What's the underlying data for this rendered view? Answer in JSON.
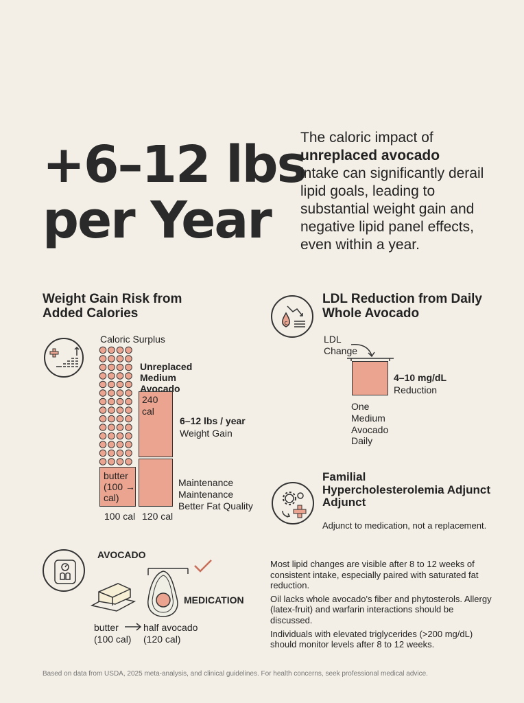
{
  "headline": {
    "line1": "+6–12 lbs",
    "line2": "per Year"
  },
  "intro": {
    "part1": "The caloric impact of",
    "bold": "unreplaced avocado",
    "part2": "intake can significantly derail lipid goals, leading to substantial weight gain and negative lipid panel effects, even within a year."
  },
  "weight_section": {
    "title_line1": "Weight Gain Risk from",
    "title_line2": "Added Calories",
    "caloric_surplus": "Caloric Surplus",
    "dots_label_line1": "Unreplaced",
    "dots_label_line2": "Medium",
    "dots_label_line3": "Avocado",
    "bar_240_label": "240 cal",
    "gain_label_line1": "6–12 lbs / year",
    "gain_label_line2": "Weight Gain",
    "butter_label_line1": "butter",
    "butter_label_line2": "(100 →",
    "butter_label_line3": "cal)",
    "maint_line1": "Maintenance",
    "maint_line2": "Maintenance",
    "maint_line3": "Better Fat Quality",
    "cal_100": "100 cal",
    "cal_120": "120 cal"
  },
  "ldl_section": {
    "title_line1": "LDL Reduction from Daily",
    "title_line2": "Whole Avocado",
    "ldl_change_line1": "LDL",
    "ldl_change_line2": "Change",
    "reduction_line1": "4–10 mg/dL",
    "reduction_line2": "Reduction",
    "avocado_line1": "One",
    "avocado_line2": "Medium",
    "avocado_line3": "Avocado",
    "avocado_line4": "Daily"
  },
  "fh_section": {
    "title_line1": "Familial",
    "title_line2": "Hypercholesterolemia Adjunct",
    "title_line3": "Adjunct",
    "note": "Adjunct to medication, not a replacement."
  },
  "swap_section": {
    "avocado_label": "AVOCADO",
    "medication_label": "MEDICATION",
    "butter_line1": "butter",
    "butter_line2": "(100 cal)",
    "half_line1": "half avocado",
    "half_line2": "(120 cal)"
  },
  "notes": [
    "Most lipid changes are visible after 8 to 12 weeks of consistent intake, especially paired with saturated fat reduction.",
    "Oil lacks whole avocado's fiber and phytosterols. Allergy (latex-fruit) and warfarin interactions should be discussed.",
    "Individuals with elevated triglycerides (>200 mg/dL) should monitor levels after 8 to 12 weeks."
  ],
  "footer": "Based on data from USDA, 2025 meta-analysis, and clinical guidelines. For health concerns, seek professional medical advice.",
  "colors": {
    "accent": "#eba48f",
    "background": "#f3efe6",
    "ink": "#222222"
  },
  "icons": [
    "health-scale-chart-icon",
    "ldl-drop-icon",
    "gears-cross-icon",
    "bathroom-scale-icon",
    "butter-icon",
    "avocado-icon",
    "checkmark-icon"
  ]
}
